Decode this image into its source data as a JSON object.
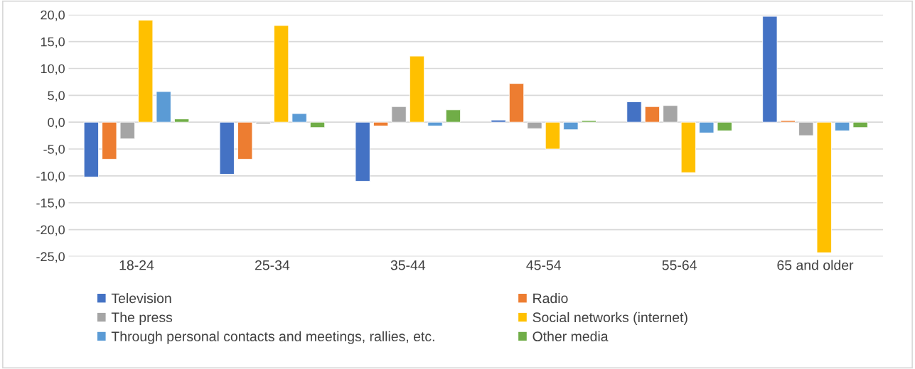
{
  "chart_data": {
    "type": "bar",
    "categories": [
      "18-24",
      "25-34",
      "35-44",
      "45-54",
      "55-64",
      "65 and older"
    ],
    "series": [
      {
        "name": "Television",
        "color": "#4472c4",
        "values": [
          -10.2,
          -9.7,
          -11.0,
          0.4,
          3.8,
          19.7
        ]
      },
      {
        "name": "Radio",
        "color": "#ed7d31",
        "values": [
          -6.9,
          -6.9,
          -0.7,
          7.2,
          2.9,
          0.3
        ]
      },
      {
        "name": "The press",
        "color": "#a5a5a5",
        "values": [
          -3.1,
          -0.3,
          2.9,
          -1.2,
          3.1,
          -2.5
        ]
      },
      {
        "name": "Social networks (internet)",
        "color": "#ffc000",
        "values": [
          19.0,
          18.0,
          12.3,
          -5.0,
          -9.4,
          -24.3
        ]
      },
      {
        "name": "Through personal contacts and meetings, rallies, etc.",
        "color": "#5b9bd5",
        "values": [
          5.7,
          1.6,
          -0.7,
          -1.4,
          -2.0,
          -1.6
        ]
      },
      {
        "name": "Other media",
        "color": "#70ad47",
        "values": [
          0.6,
          -1.0,
          2.3,
          0.3,
          -1.6,
          -1.0
        ]
      }
    ],
    "ylim": [
      -25,
      20
    ],
    "yticks": [
      {
        "value": -25,
        "label": "-25,0"
      },
      {
        "value": -20,
        "label": "-20,0"
      },
      {
        "value": -15,
        "label": "-15,0"
      },
      {
        "value": -10,
        "label": "-10,0"
      },
      {
        "value": -5,
        "label": "-5,0"
      },
      {
        "value": 0,
        "label": "0,0"
      },
      {
        "value": 5,
        "label": "5,0"
      },
      {
        "value": 10,
        "label": "10,0"
      },
      {
        "value": 15,
        "label": "15,0"
      },
      {
        "value": 20,
        "label": "20,0"
      }
    ],
    "grid": "y",
    "legend": "bottom"
  }
}
